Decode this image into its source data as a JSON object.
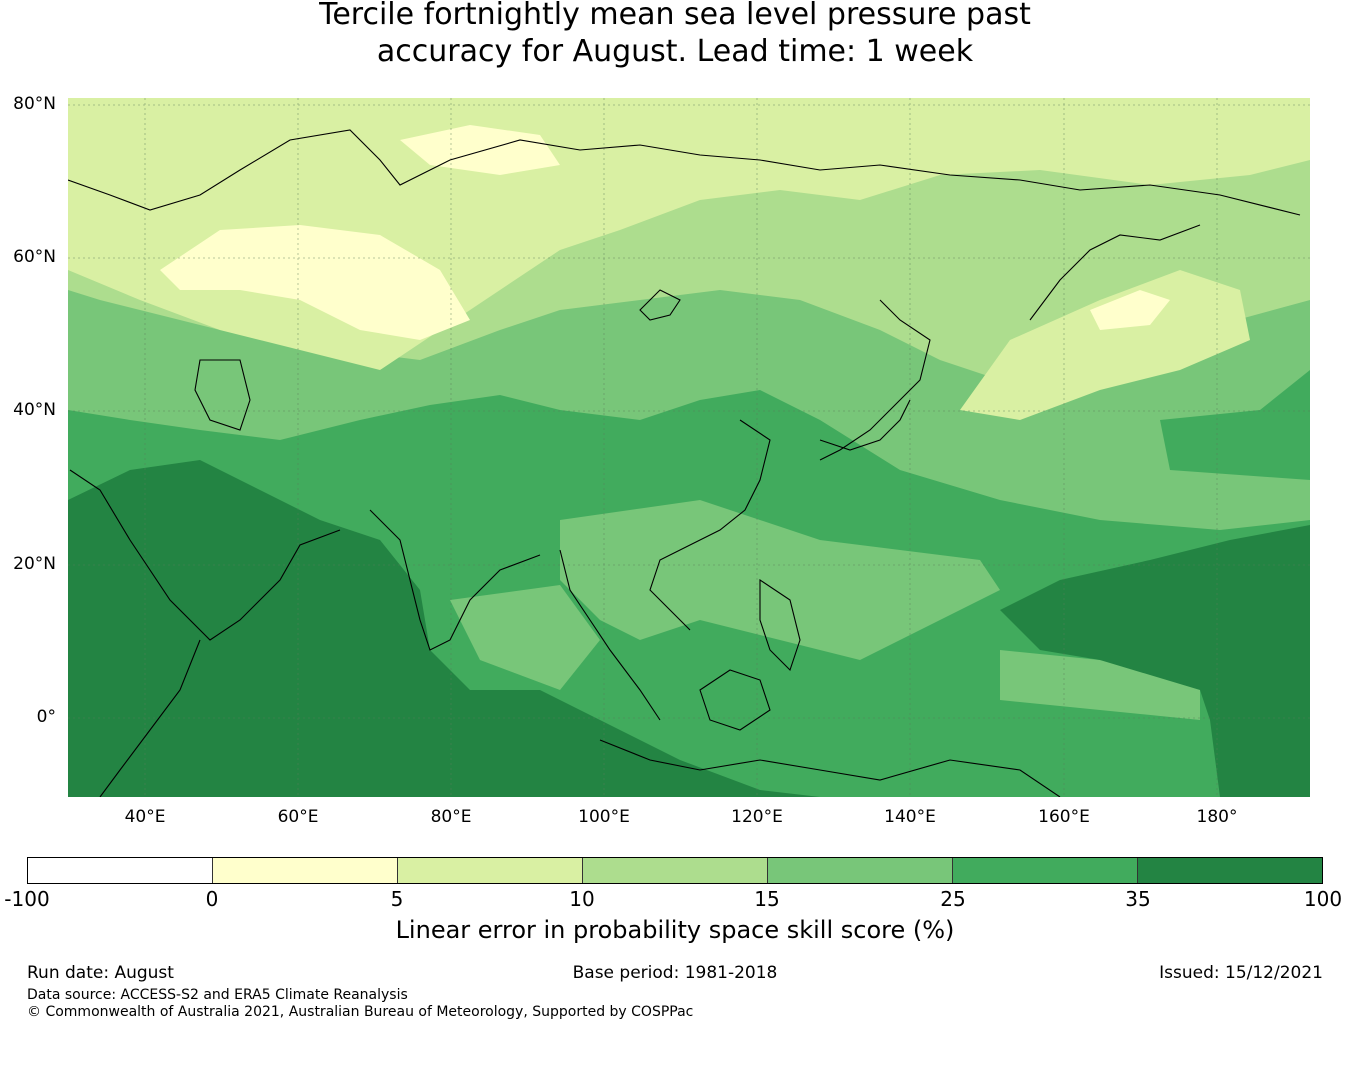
{
  "title": {
    "line1": "Tercile fortnightly mean sea level pressure past",
    "line2": "accuracy for August. Lead time: 1 week"
  },
  "map": {
    "lat_labels": [
      "80°N",
      "60°N",
      "40°N",
      "20°N",
      "0°"
    ],
    "lon_labels": [
      "40°E",
      "60°E",
      "80°E",
      "100°E",
      "120°E",
      "140°E",
      "160°E",
      "180°"
    ],
    "lon_range": [
      30,
      192
    ],
    "lat_range": [
      -10,
      81
    ],
    "gridlines": true,
    "coastlines": true
  },
  "colorbar": {
    "ticks": [
      "-100",
      "0",
      "5",
      "10",
      "15",
      "25",
      "35",
      "100"
    ],
    "colors": [
      "#ffffff",
      "#ffffcc",
      "#d9f0a3",
      "#addd8e",
      "#78c679",
      "#41ab5d",
      "#238443"
    ],
    "label": "Linear error in probability space skill score (%)"
  },
  "footer": {
    "run_date": "Run date: August",
    "base_period": "Base period: 1981-2018",
    "issued": "Issued: 15/12/2021",
    "data_source": "Data source: ACCESS-S2 and ERA5 Climate Reanalysis",
    "copyright": "© Commonwealth of Australia 2021, Australian Bureau of Meteorology, Supported by COSPPac"
  }
}
